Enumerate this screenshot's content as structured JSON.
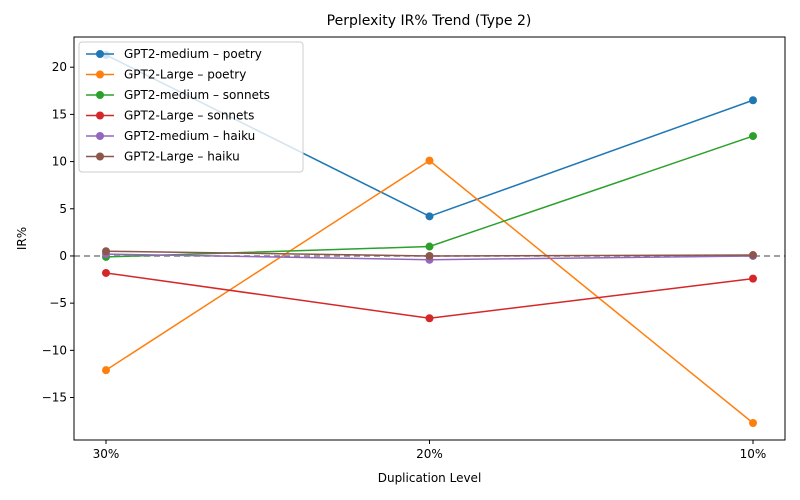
{
  "chart_data": {
    "type": "line",
    "title": "Perplexity IR% Trend (Type 2)",
    "xlabel": "Duplication Level",
    "ylabel": "IR%",
    "categories": [
      "30%",
      "20%",
      "10%"
    ],
    "ylim": [
      -19.5,
      23.2
    ],
    "yticks": [
      -15,
      -10,
      -5,
      0,
      5,
      10,
      15,
      20
    ],
    "reference_line": {
      "y": 0,
      "style": "dashed",
      "color": "#808080"
    },
    "grid": false,
    "legend_position": "upper-left",
    "series": [
      {
        "name": "GPT2-medium – poetry",
        "color": "#1f77b4",
        "values": [
          21.3,
          4.2,
          16.5
        ]
      },
      {
        "name": "GPT2-Large – poetry",
        "color": "#ff7f0e",
        "values": [
          -12.1,
          10.1,
          -17.7
        ]
      },
      {
        "name": "GPT2-medium – sonnets",
        "color": "#2ca02c",
        "values": [
          -0.1,
          1.0,
          12.7
        ]
      },
      {
        "name": "GPT2-Large – sonnets",
        "color": "#d62728",
        "values": [
          -1.8,
          -6.6,
          -2.4
        ]
      },
      {
        "name": "GPT2-medium – haiku",
        "color": "#9467bd",
        "values": [
          0.2,
          -0.4,
          0.0
        ]
      },
      {
        "name": "GPT2-Large – haiku",
        "color": "#8c564b",
        "values": [
          0.5,
          0.0,
          0.1
        ]
      }
    ]
  }
}
